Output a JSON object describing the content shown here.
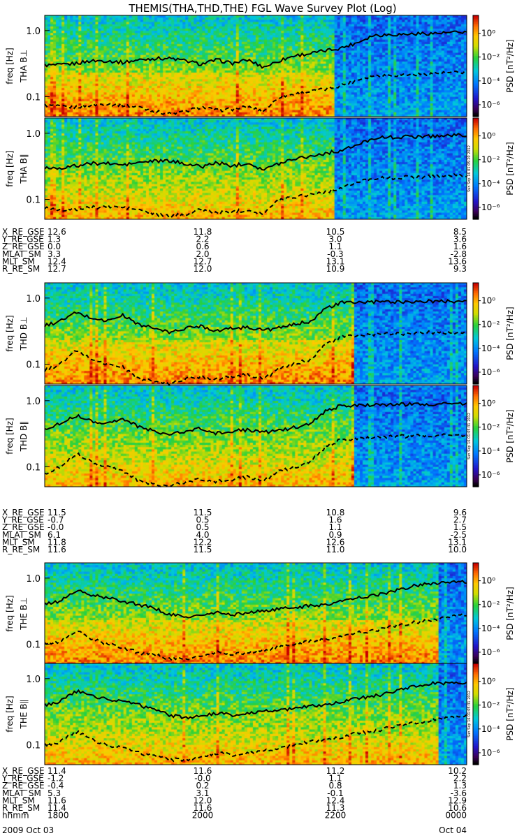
{
  "title": "THEMIS(THA,THD,THE) FGL Wave Survey Plot (Log)",
  "colorbar": {
    "label": "PSD [nT²/Hz]",
    "ticks": [
      "10⁰",
      "10⁻²",
      "10⁻⁴",
      "10⁻⁶"
    ],
    "range_log10": [
      -7,
      1.5
    ]
  },
  "chart_data": [
    {
      "type": "heatmap",
      "title": "THA B⊥",
      "ylabel": "freq [Hz]",
      "yscale": "log",
      "ylim": [
        0.05,
        1.7
      ],
      "yticks": [
        "1.0",
        "0.1"
      ],
      "curves": "solid: upper frequency trace; dashed: lower trace",
      "stamp": "",
      "fc_solid": [
        0.3,
        0.3,
        0.32,
        0.35,
        0.35,
        0.33,
        0.36,
        0.38,
        0.38,
        0.35,
        0.31,
        0.36,
        0.32,
        0.36,
        0.28,
        0.35,
        0.42,
        0.45,
        0.5,
        0.55,
        0.66,
        0.85,
        0.87,
        0.88,
        0.9,
        0.91,
        0.93,
        0.95
      ],
      "fc_dashed": [
        0.075,
        0.07,
        0.07,
        0.075,
        0.078,
        0.075,
        0.07,
        0.06,
        0.055,
        0.06,
        0.07,
        0.062,
        0.065,
        0.07,
        0.06,
        0.1,
        0.11,
        0.12,
        0.13,
        0.15,
        0.18,
        0.21,
        0.21,
        0.215,
        0.22,
        0.225,
        0.23,
        0.235
      ]
    },
    {
      "type": "heatmap",
      "title": "THA B∥",
      "ylabel": "freq [Hz]",
      "yscale": "log",
      "ylim": [
        0.05,
        1.7
      ],
      "yticks": [
        "1.0",
        "0.1"
      ],
      "stamp": "Sun Sep 16 01:05:20 2012",
      "fc_solid": [
        0.3,
        0.3,
        0.32,
        0.35,
        0.35,
        0.33,
        0.36,
        0.38,
        0.38,
        0.35,
        0.31,
        0.36,
        0.32,
        0.36,
        0.28,
        0.35,
        0.42,
        0.45,
        0.5,
        0.55,
        0.66,
        0.85,
        0.87,
        0.88,
        0.9,
        0.91,
        0.93,
        0.95
      ],
      "fc_dashed": [
        0.075,
        0.07,
        0.07,
        0.075,
        0.078,
        0.075,
        0.07,
        0.06,
        0.055,
        0.06,
        0.07,
        0.062,
        0.065,
        0.07,
        0.06,
        0.1,
        0.11,
        0.12,
        0.13,
        0.15,
        0.18,
        0.21,
        0.21,
        0.215,
        0.22,
        0.225,
        0.23,
        0.235
      ]
    },
    {
      "type": "heatmap",
      "title": "THD B⊥",
      "ylabel": "freq [Hz]",
      "yscale": "log",
      "ylim": [
        0.05,
        1.7
      ],
      "yticks": [
        "1.0",
        "0.1"
      ],
      "stamp": "",
      "fc_solid": [
        0.38,
        0.45,
        0.6,
        0.5,
        0.45,
        0.55,
        0.4,
        0.35,
        0.3,
        0.35,
        0.38,
        0.32,
        0.35,
        0.36,
        0.33,
        0.35,
        0.4,
        0.45,
        0.7,
        0.85,
        0.86,
        0.87,
        0.88,
        0.88,
        0.89,
        0.89,
        0.9,
        0.9
      ],
      "fc_dashed": [
        0.08,
        0.1,
        0.16,
        0.12,
        0.1,
        0.09,
        0.06,
        0.055,
        0.05,
        0.06,
        0.065,
        0.06,
        0.065,
        0.07,
        0.06,
        0.085,
        0.1,
        0.12,
        0.2,
        0.26,
        0.27,
        0.28,
        0.29,
        0.29,
        0.3,
        0.3,
        0.3,
        0.3
      ]
    },
    {
      "type": "heatmap",
      "title": "THD B∥",
      "ylabel": "freq [Hz]",
      "yscale": "log",
      "ylim": [
        0.05,
        1.7
      ],
      "yticks": [
        "1.0",
        "0.1"
      ],
      "stamp": "Sun Sep 16 01:05:31 2012",
      "fc_solid": [
        0.38,
        0.45,
        0.6,
        0.5,
        0.45,
        0.55,
        0.4,
        0.35,
        0.3,
        0.35,
        0.38,
        0.32,
        0.35,
        0.36,
        0.33,
        0.35,
        0.4,
        0.45,
        0.7,
        0.85,
        0.86,
        0.87,
        0.88,
        0.88,
        0.89,
        0.89,
        0.9,
        0.9
      ],
      "fc_dashed": [
        0.08,
        0.1,
        0.16,
        0.12,
        0.1,
        0.09,
        0.06,
        0.055,
        0.05,
        0.06,
        0.065,
        0.06,
        0.065,
        0.07,
        0.06,
        0.085,
        0.1,
        0.12,
        0.2,
        0.26,
        0.27,
        0.28,
        0.29,
        0.29,
        0.3,
        0.3,
        0.3,
        0.3
      ]
    },
    {
      "type": "heatmap",
      "title": "THE B⊥",
      "ylabel": "freq [Hz]",
      "yscale": "log",
      "ylim": [
        0.05,
        1.7
      ],
      "yticks": [
        "1.0",
        "0.1"
      ],
      "stamp": "",
      "fc_solid": [
        0.4,
        0.45,
        0.65,
        0.55,
        0.5,
        0.45,
        0.4,
        0.35,
        0.28,
        0.26,
        0.27,
        0.3,
        0.28,
        0.3,
        0.32,
        0.34,
        0.36,
        0.38,
        0.4,
        0.45,
        0.5,
        0.55,
        0.6,
        0.7,
        0.8,
        0.85,
        0.86,
        0.87
      ],
      "fc_dashed": [
        0.1,
        0.11,
        0.16,
        0.12,
        0.1,
        0.09,
        0.075,
        0.07,
        0.06,
        0.06,
        0.065,
        0.075,
        0.07,
        0.075,
        0.08,
        0.09,
        0.1,
        0.11,
        0.12,
        0.13,
        0.15,
        0.16,
        0.18,
        0.2,
        0.22,
        0.24,
        0.26,
        0.28
      ]
    },
    {
      "type": "heatmap",
      "title": "THE B∥",
      "ylabel": "freq [Hz]",
      "yscale": "log",
      "ylim": [
        0.05,
        1.7
      ],
      "yticks": [
        "1.0",
        "0.1"
      ],
      "stamp": "Sun Sep 16 01:05:31 2012",
      "fc_solid": [
        0.4,
        0.45,
        0.65,
        0.55,
        0.5,
        0.45,
        0.4,
        0.35,
        0.28,
        0.26,
        0.27,
        0.3,
        0.28,
        0.3,
        0.32,
        0.34,
        0.36,
        0.38,
        0.4,
        0.45,
        0.5,
        0.55,
        0.6,
        0.7,
        0.8,
        0.85,
        0.86,
        0.87
      ],
      "fc_dashed": [
        0.1,
        0.11,
        0.16,
        0.12,
        0.1,
        0.09,
        0.075,
        0.07,
        0.06,
        0.06,
        0.065,
        0.075,
        0.07,
        0.075,
        0.08,
        0.09,
        0.1,
        0.11,
        0.12,
        0.13,
        0.15,
        0.16,
        0.18,
        0.2,
        0.22,
        0.24,
        0.26,
        0.28
      ]
    }
  ],
  "ephemeris_blocks": [
    {
      "rows": [
        {
          "label": "X_RE_GSE",
          "values": [
            "12.6",
            "11.8",
            "10.5",
            "8.5"
          ]
        },
        {
          "label": "Y_RE_GSE",
          "values": [
            "1.3",
            "2.2",
            "3.0",
            "3.6"
          ]
        },
        {
          "label": "Z_RE_GSE",
          "values": [
            "0.0",
            "0.6",
            "1.1",
            "1.6"
          ]
        },
        {
          "label": "MLAT_SM",
          "values": [
            "3.3",
            "2.0",
            "-0.3",
            "-2.8"
          ]
        },
        {
          "label": "MLT_SM",
          "values": [
            "12.4",
            "12.7",
            "13.1",
            "13.6"
          ]
        },
        {
          "label": "R_RE_SM",
          "values": [
            "12.7",
            "12.0",
            "10.9",
            "9.3"
          ]
        }
      ]
    },
    {
      "rows": [
        {
          "label": "X_RE_GSE",
          "values": [
            "11.5",
            "11.5",
            "10.8",
            "9.6"
          ]
        },
        {
          "label": "Y_RE_GSE",
          "values": [
            "-0.7",
            "0.5",
            "1.6",
            "2.7"
          ]
        },
        {
          "label": "Z_RE_GSE",
          "values": [
            "-0.0",
            "0.5",
            "1.1",
            "1.5"
          ]
        },
        {
          "label": "MLAT_SM",
          "values": [
            "6.1",
            "4.0",
            "0.9",
            "-2.5"
          ]
        },
        {
          "label": "MLT_SM",
          "values": [
            "11.8",
            "12.2",
            "12.6",
            "13.1"
          ]
        },
        {
          "label": "R_RE_SM",
          "values": [
            "11.6",
            "11.5",
            "11.0",
            "10.0"
          ]
        }
      ]
    },
    {
      "rows": [
        {
          "label": "X_RE_GSE",
          "values": [
            "11.4",
            "11.6",
            "11.2",
            "10.2"
          ]
        },
        {
          "label": "Y_RE_GSE",
          "values": [
            "-1.2",
            "-0.0",
            "1.1",
            "2.2"
          ]
        },
        {
          "label": "Z_RE_GSE",
          "values": [
            "-0.4",
            "0.2",
            "0.8",
            "1.3"
          ]
        },
        {
          "label": "MLAT_SM",
          "values": [
            "5.3",
            "3.1",
            "-0.1",
            "-3.6"
          ]
        },
        {
          "label": "MLT_SM",
          "values": [
            "11.6",
            "12.0",
            "12.4",
            "12.9"
          ]
        },
        {
          "label": "R_RE_SM",
          "values": [
            "11.4",
            "11.6",
            "11.3",
            "10.6"
          ]
        },
        {
          "label": "hhmm",
          "values": [
            "1800",
            "2000",
            "2200",
            "0000"
          ]
        }
      ]
    }
  ],
  "time_axis": {
    "date_start": "2009    Oct 03",
    "date_end": "Oct 04",
    "range": [
      "2009-10-03 18:00",
      "2009-10-04 00:00"
    ]
  }
}
